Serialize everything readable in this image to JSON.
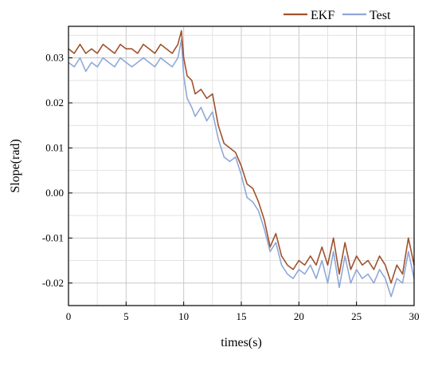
{
  "chart_data": {
    "type": "line",
    "title": "",
    "xlabel": "times(s)",
    "ylabel": "Slope(rad)",
    "xlim": [
      0,
      30
    ],
    "ylim": [
      -0.025,
      0.037
    ],
    "xticks": [
      0,
      5,
      10,
      15,
      20,
      25,
      30
    ],
    "yticks": [
      -0.02,
      -0.01,
      0.0,
      0.01,
      0.02,
      0.03
    ],
    "xtick_labels": [
      "0",
      "5",
      "10",
      "15",
      "20",
      "25",
      "30"
    ],
    "ytick_labels": [
      "-0.02",
      "-0.01",
      "0.00",
      "0.01",
      "0.02",
      "0.03"
    ],
    "grid": true,
    "legend_position": "top-right",
    "series": [
      {
        "name": "EKF",
        "color": "#a0522d",
        "x": [
          0,
          0.5,
          1,
          1.5,
          2,
          2.5,
          3,
          3.5,
          4,
          4.5,
          5,
          5.5,
          6,
          6.5,
          7,
          7.5,
          8,
          8.5,
          9,
          9.5,
          9.8,
          10,
          10.3,
          10.7,
          11,
          11.5,
          12,
          12.5,
          13,
          13.5,
          14,
          14.5,
          15,
          15.5,
          16,
          16.5,
          17,
          17.5,
          18,
          18.5,
          19,
          19.5,
          20,
          20.5,
          21,
          21.5,
          22,
          22.5,
          23,
          23.5,
          24,
          24.5,
          25,
          25.5,
          26,
          26.5,
          27,
          27.5,
          28,
          28.5,
          29,
          29.5,
          30
        ],
        "y": [
          0.032,
          0.031,
          0.033,
          0.031,
          0.032,
          0.031,
          0.033,
          0.032,
          0.031,
          0.033,
          0.032,
          0.032,
          0.031,
          0.033,
          0.032,
          0.031,
          0.033,
          0.032,
          0.031,
          0.033,
          0.036,
          0.03,
          0.026,
          0.025,
          0.022,
          0.023,
          0.021,
          0.022,
          0.015,
          0.011,
          0.01,
          0.009,
          0.006,
          0.002,
          0.001,
          -0.002,
          -0.006,
          -0.012,
          -0.009,
          -0.014,
          -0.016,
          -0.017,
          -0.015,
          -0.016,
          -0.014,
          -0.016,
          -0.012,
          -0.016,
          -0.01,
          -0.018,
          -0.011,
          -0.017,
          -0.014,
          -0.016,
          -0.015,
          -0.017,
          -0.014,
          -0.016,
          -0.02,
          -0.016,
          -0.018,
          -0.01,
          -0.016
        ]
      },
      {
        "name": "Test",
        "color": "#8ea8d8",
        "x": [
          0,
          0.5,
          1,
          1.5,
          2,
          2.5,
          3,
          3.5,
          4,
          4.5,
          5,
          5.5,
          6,
          6.5,
          7,
          7.5,
          8,
          8.5,
          9,
          9.5,
          9.8,
          10,
          10.3,
          10.7,
          11,
          11.5,
          12,
          12.5,
          13,
          13.5,
          14,
          14.5,
          15,
          15.5,
          16,
          16.5,
          17,
          17.5,
          18,
          18.5,
          19,
          19.5,
          20,
          20.5,
          21,
          21.5,
          22,
          22.5,
          23,
          23.5,
          24,
          24.5,
          25,
          25.5,
          26,
          26.5,
          27,
          27.5,
          28,
          28.5,
          29,
          29.5,
          30
        ],
        "y": [
          0.029,
          0.028,
          0.03,
          0.027,
          0.029,
          0.028,
          0.03,
          0.029,
          0.028,
          0.03,
          0.029,
          0.028,
          0.029,
          0.03,
          0.029,
          0.028,
          0.03,
          0.029,
          0.028,
          0.03,
          0.034,
          0.026,
          0.021,
          0.019,
          0.017,
          0.019,
          0.016,
          0.018,
          0.012,
          0.008,
          0.007,
          0.008,
          0.004,
          -0.001,
          -0.002,
          -0.004,
          -0.008,
          -0.013,
          -0.011,
          -0.016,
          -0.018,
          -0.019,
          -0.017,
          -0.018,
          -0.016,
          -0.019,
          -0.015,
          -0.02,
          -0.013,
          -0.021,
          -0.014,
          -0.02,
          -0.017,
          -0.019,
          -0.018,
          -0.02,
          -0.017,
          -0.019,
          -0.023,
          -0.019,
          -0.02,
          -0.013,
          -0.019
        ]
      }
    ]
  }
}
